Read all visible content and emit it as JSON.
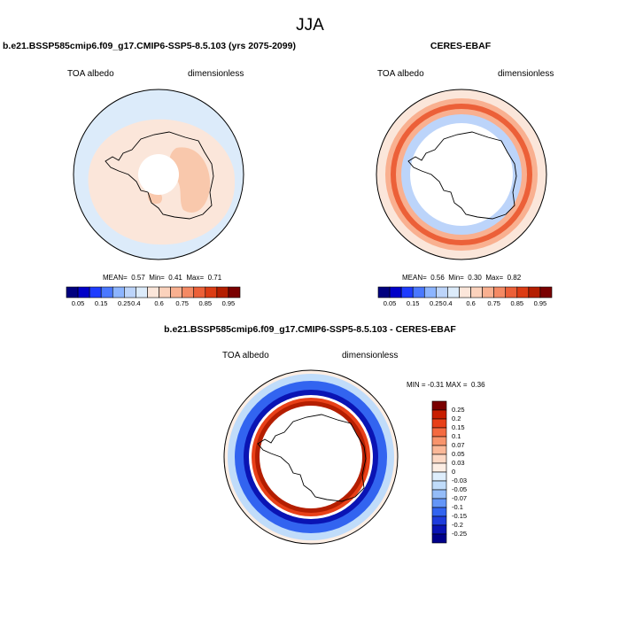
{
  "figure": {
    "title": "JJA"
  },
  "panels": [
    {
      "title": "b.e21.BSSP585cmip6.f09_g17.CMIP6-SSP5-8.5.103 (yrs 2075-2099)",
      "left_label": "TOA albedo",
      "right_label": "dimensionless",
      "stats": {
        "mean_label": "MEAN=",
        "mean": "0.57",
        "min_label": "Min=",
        "min": "0.41",
        "max_label": "Max=",
        "max": "0.71"
      }
    },
    {
      "title": "CERES-EBAF",
      "left_label": "TOA albedo",
      "right_label": "dimensionless",
      "stats": {
        "mean_label": "MEAN=",
        "mean": "0.56",
        "min_label": "Min=",
        "min": "0.30",
        "max_label": "Max=",
        "max": "0.82"
      }
    },
    {
      "title": "b.e21.BSSP585cmip6.f09_g17.CMIP6-SSP5-8.5.103 - CERES-EBAF",
      "left_label": "TOA albedo",
      "right_label": "dimensionless",
      "stats": {
        "min_label": "MIN =",
        "min": "-0.31",
        "max_label": "MAX =",
        "max": "0.36"
      }
    }
  ],
  "colorbar_abs": {
    "colors": [
      "#00007f",
      "#0000c8",
      "#1e3cff",
      "#4a78ff",
      "#8cb4ff",
      "#bcd4fa",
      "#dcebfa",
      "#fbe6da",
      "#fbd2bc",
      "#f9b090",
      "#f48a64",
      "#ec6038",
      "#dc3c14",
      "#b41e00",
      "#7a0000"
    ],
    "labels": [
      "0.05",
      "0.15",
      "0.25",
      "0.4",
      "0.6",
      "0.75",
      "0.85",
      "0.95"
    ]
  },
  "colorbar_diff": {
    "colors": [
      "#7a0000",
      "#c81e00",
      "#e84018",
      "#f46a40",
      "#f8946c",
      "#fbb898",
      "#fdd8c4",
      "#fdeee4",
      "#deeefc",
      "#c0dcfa",
      "#94bcf8",
      "#6496f8",
      "#3264f0",
      "#1e3cdc",
      "#0a14b4",
      "#00008a"
    ],
    "labels": [
      "0.25",
      "0.2",
      "0.15",
      "0.1",
      "0.07",
      "0.05",
      "0.03",
      "0",
      "-0.03",
      "-0.05",
      "-0.07",
      "-0.1",
      "-0.15",
      "-0.2",
      "-0.25"
    ]
  },
  "map_colors": {
    "model": {
      "ocean": "#dcebfa",
      "mid": "#fbe6da",
      "high": "#f9c8ac",
      "land_inner": "#ffffff"
    },
    "obs": {
      "outer": "#fbe6da",
      "bandA": "#f9b090",
      "bandB": "#ec6038",
      "blueA": "#bcd4fa",
      "blueB": "#8cb4ff",
      "land": "#ffffff"
    },
    "diff": {
      "outer": "#fdeee4",
      "lightblue": "#c0dcfa",
      "blue": "#3264f0",
      "darkblue": "#0a14b4",
      "redring": "#e84018",
      "darkred": "#b41e00"
    }
  }
}
